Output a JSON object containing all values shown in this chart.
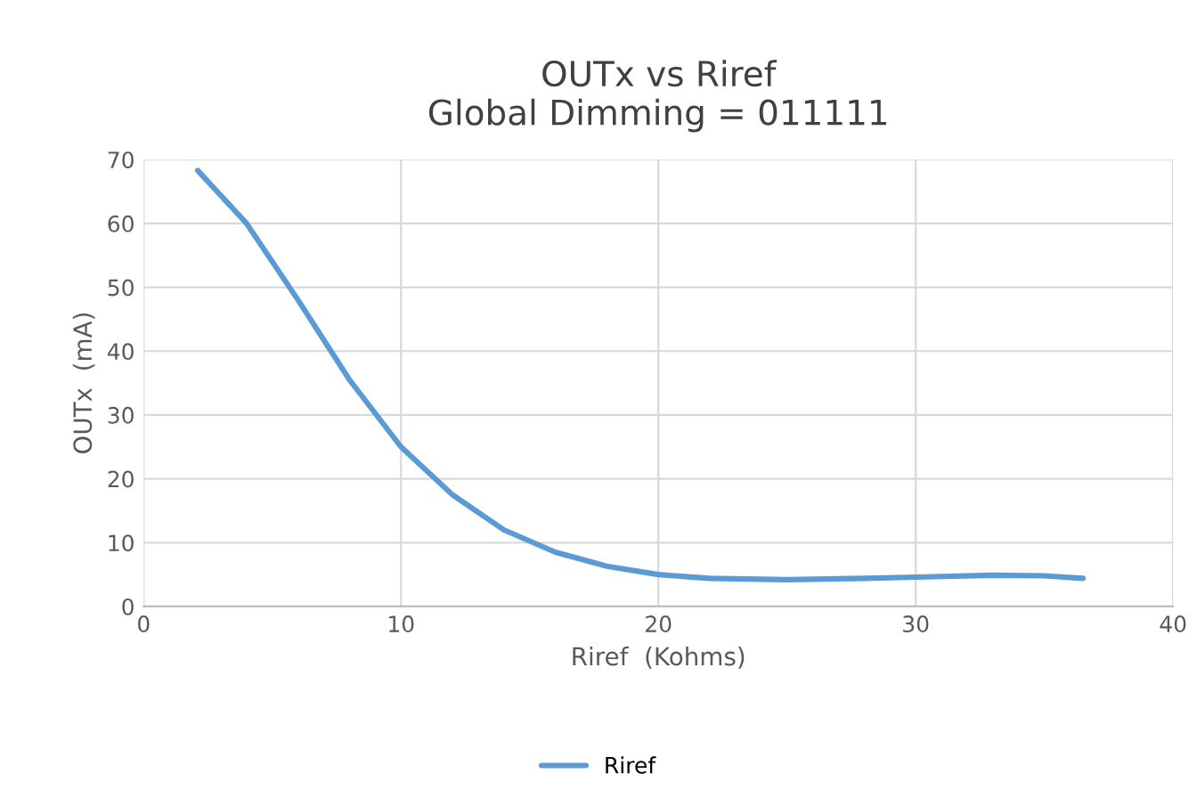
{
  "chart_data": {
    "type": "line",
    "title": "OUTx vs Riref\nGlobal Dimming = 011111",
    "xlabel": "Riref  (Kohms)",
    "ylabel": "OUTx  (mA)",
    "series": [
      {
        "name": "Riref",
        "color": "#5b9bd5",
        "x": [
          2.1,
          4,
          6,
          8,
          10,
          12,
          14,
          16,
          18,
          20,
          22,
          25,
          28,
          30,
          33,
          35,
          36.5
        ],
        "values": [
          68.3,
          60,
          48,
          35.5,
          25,
          17.5,
          12,
          8.5,
          6.3,
          5,
          4.4,
          4.2,
          4.4,
          4.6,
          4.9,
          4.8,
          4.4
        ]
      }
    ],
    "xlim": [
      0,
      40
    ],
    "xticks": [
      0,
      10,
      20,
      30,
      40
    ],
    "ylim": [
      0,
      70
    ],
    "yticks": [
      0,
      10,
      20,
      30,
      40,
      50,
      60,
      70
    ],
    "grid": true,
    "legend": "bottom",
    "marker": "none",
    "line_style": "solid"
  }
}
